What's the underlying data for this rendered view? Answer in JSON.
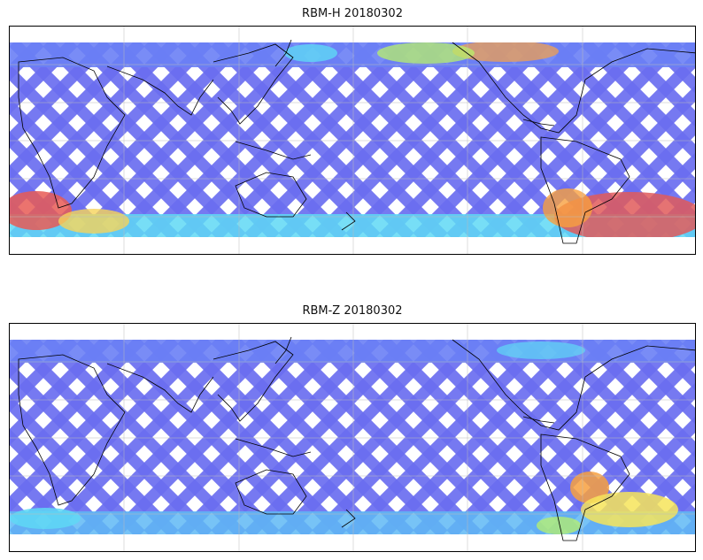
{
  "maps": [
    {
      "title": "RBM-H 20180302",
      "background": "#ffffff",
      "swath_low_color": "#6a6ef0",
      "swath_mid_color": "#5fd8f5",
      "swath_high_color": "#e05a5a",
      "hot_regions": [
        "south-atlantic",
        "south-indian-ocean",
        "southern-ocean-band"
      ]
    },
    {
      "title": "RBM-Z 20180302",
      "background": "#ffffff",
      "swath_low_color": "#6a6ef0",
      "swath_mid_color": "#5fd8f5",
      "swath_high_color": "#f0a050",
      "hot_regions": [
        "south-atlantic"
      ]
    }
  ]
}
